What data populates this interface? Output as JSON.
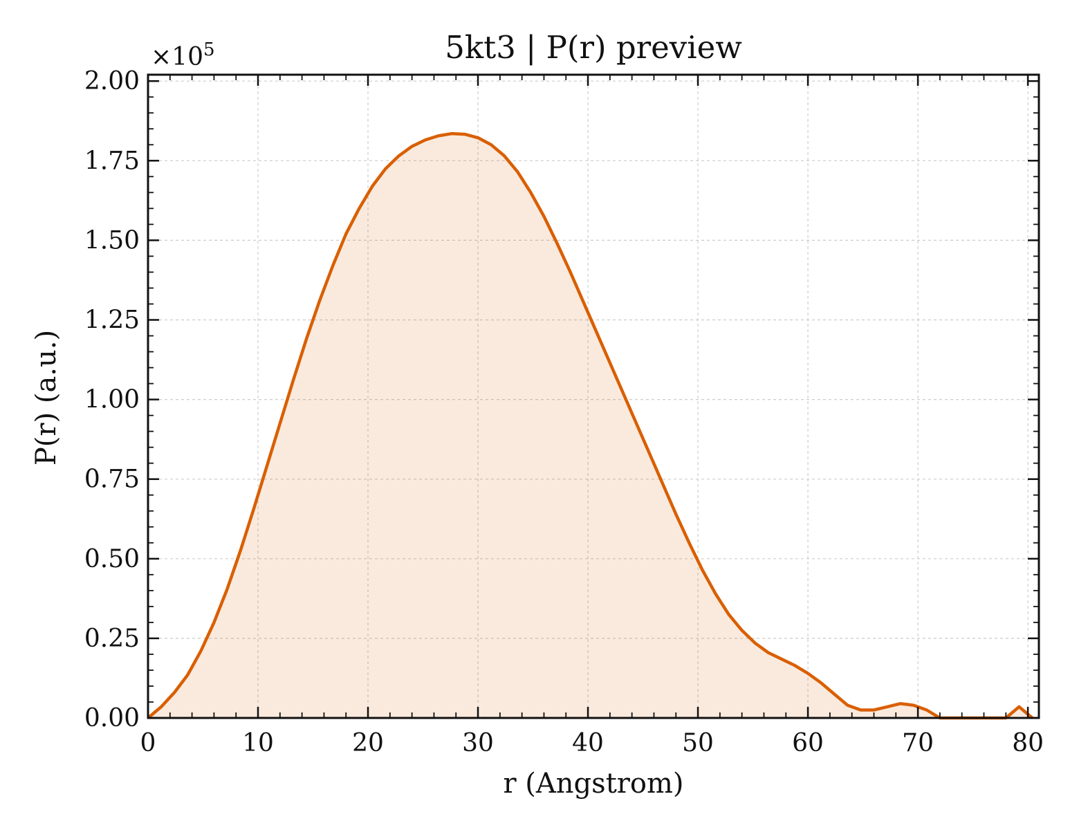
{
  "chart_data": {
    "type": "area",
    "title": "5kt3 | P(r) preview",
    "xlabel": "r (Angstrom)",
    "ylabel": "P(r) (a.u.)",
    "y_multiplier_label": "×10",
    "y_multiplier_exponent": "5",
    "y_multiplier": 100000,
    "xlim": [
      0,
      81
    ],
    "ylim": [
      0,
      202000
    ],
    "x_ticks": [
      0,
      10,
      20,
      30,
      40,
      50,
      60,
      70,
      80
    ],
    "x_tick_labels": [
      "0",
      "10",
      "20",
      "30",
      "40",
      "50",
      "60",
      "70",
      "80"
    ],
    "y_ticks": [
      0,
      25000,
      50000,
      75000,
      100000,
      125000,
      150000,
      175000,
      200000
    ],
    "y_tick_labels": [
      "0.00",
      "0.25",
      "0.50",
      "0.75",
      "1.00",
      "1.25",
      "1.50",
      "1.75",
      "2.00"
    ],
    "grid": true,
    "line_color": "#d95f02",
    "fill_color": "#d95f02",
    "fill_opacity": 0.13,
    "series": [
      {
        "x": [
          0.0,
          1.2,
          2.4,
          3.6,
          4.8,
          6.0,
          7.2,
          8.4,
          9.6,
          10.8,
          12.0,
          13.2,
          14.4,
          15.6,
          16.8,
          18.0,
          19.2,
          20.4,
          21.6,
          22.8,
          24.0,
          25.2,
          26.4,
          27.6,
          28.8,
          30.0,
          31.2,
          32.4,
          33.6,
          34.8,
          36.0,
          37.2,
          38.4,
          39.6,
          40.8,
          42.0,
          43.2,
          44.4,
          45.6,
          46.8,
          48.0,
          49.2,
          50.4,
          51.6,
          52.8,
          54.0,
          55.2,
          56.4,
          57.6,
          58.8,
          60.0,
          61.2,
          62.4,
          63.6,
          64.8,
          66.0,
          67.2,
          68.4,
          69.6,
          70.8,
          72.0,
          73.2,
          74.4,
          75.6,
          76.8,
          78.0,
          79.2,
          80.4
        ],
        "y": [
          0,
          3500,
          8000,
          13500,
          21000,
          30000,
          40500,
          52500,
          65500,
          79000,
          92500,
          106000,
          119000,
          131000,
          142000,
          152000,
          160000,
          167000,
          172500,
          176500,
          179500,
          181500,
          182800,
          183500,
          183300,
          182200,
          180000,
          176500,
          171500,
          165000,
          157500,
          149000,
          140000,
          130500,
          121000,
          111500,
          102000,
          92500,
          83000,
          73500,
          64000,
          55000,
          46500,
          39000,
          32500,
          27500,
          23500,
          20500,
          18500,
          16500,
          14000,
          11000,
          7500,
          4000,
          2500,
          2500,
          3500,
          4500,
          4000,
          2500,
          0,
          0,
          0,
          0,
          0,
          0,
          3500,
          0
        ]
      }
    ]
  }
}
